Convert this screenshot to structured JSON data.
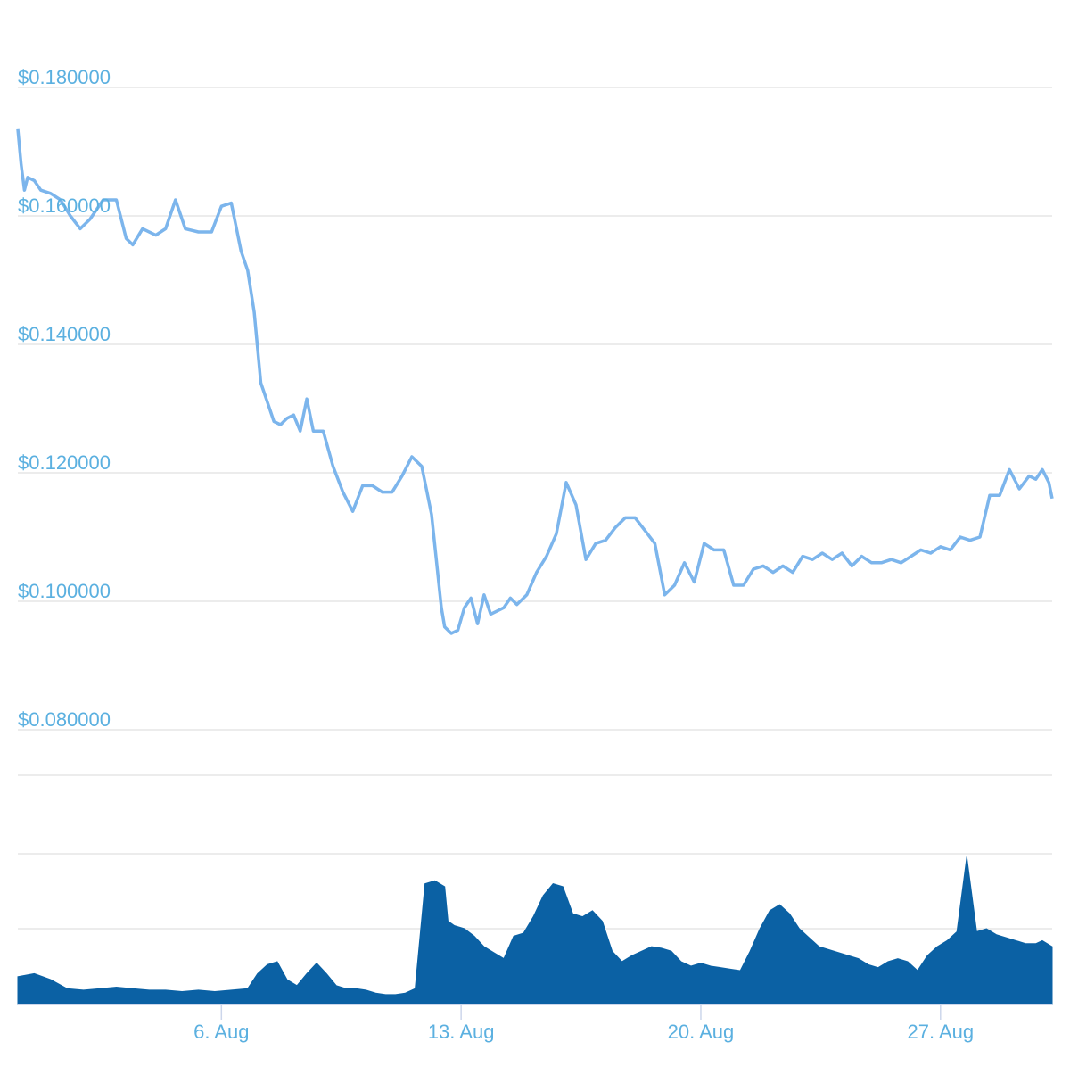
{
  "chart_data": {
    "type": "line",
    "price": {
      "color": "#7cb5ec",
      "ylim": [
        0.07,
        0.19
      ],
      "y_ticks": [
        0.18,
        0.16,
        0.14,
        0.12,
        0.1,
        0.08
      ],
      "y_tick_labels": [
        "$0.180000",
        "$0.160000",
        "$0.140000",
        "$0.120000",
        "$0.100000",
        "$0.080000"
      ],
      "x": [
        0,
        0.1,
        0.2,
        0.3,
        0.5,
        0.7,
        1.0,
        1.3,
        1.6,
        1.9,
        2.2,
        2.6,
        3.0,
        3.3,
        3.5,
        3.8,
        4.2,
        4.5,
        4.8,
        5.1,
        5.5,
        5.9,
        6.2,
        6.5,
        6.8,
        7.0,
        7.2,
        7.4,
        7.6,
        7.8,
        8.0,
        8.2,
        8.4,
        8.6,
        8.8,
        9.0,
        9.3,
        9.6,
        9.9,
        10.2,
        10.5,
        10.8,
        11.1,
        11.4,
        11.7,
        12.0,
        12.3,
        12.6,
        12.9,
        13.0,
        13.2,
        13.4,
        13.6,
        13.8,
        14.0,
        14.2,
        14.4,
        14.6,
        14.8,
        15.0,
        15.2,
        15.5,
        15.8,
        16.1,
        16.4,
        16.7,
        17.0,
        17.3,
        17.6,
        17.9,
        18.2,
        18.5,
        18.8,
        19.1,
        19.4,
        19.7,
        20.0,
        20.3,
        20.6,
        20.9,
        21.2,
        21.5,
        21.8,
        22.1,
        22.4,
        22.7,
        23.0,
        23.3,
        23.6,
        23.9,
        24.2,
        24.5,
        24.8,
        25.1,
        25.4,
        25.7,
        26.0,
        26.3,
        26.6,
        26.9,
        27.2,
        27.5,
        27.8,
        28.1,
        28.4,
        28.7,
        29.0,
        29.3,
        29.6,
        29.9,
        30.2,
        30.5,
        30.8,
        31.0,
        31.2,
        31.4,
        31.5
      ],
      "values": [
        0.1735,
        0.168,
        0.164,
        0.166,
        0.1655,
        0.164,
        0.1635,
        0.1625,
        0.16,
        0.158,
        0.1595,
        0.1625,
        0.1625,
        0.1565,
        0.1555,
        0.158,
        0.157,
        0.158,
        0.1625,
        0.158,
        0.1575,
        0.1575,
        0.1615,
        0.162,
        0.1545,
        0.1515,
        0.145,
        0.134,
        0.131,
        0.128,
        0.1275,
        0.1285,
        0.129,
        0.1265,
        0.1315,
        0.1265,
        0.1265,
        0.121,
        0.117,
        0.114,
        0.118,
        0.118,
        0.117,
        0.117,
        0.1195,
        0.1225,
        0.121,
        0.1135,
        0.099,
        0.096,
        0.095,
        0.0955,
        0.099,
        0.1005,
        0.0965,
        0.101,
        0.098,
        0.0985,
        0.099,
        0.1005,
        0.0995,
        0.101,
        0.1045,
        0.107,
        0.1105,
        0.1185,
        0.115,
        0.1065,
        0.109,
        0.1095,
        0.1115,
        0.113,
        0.113,
        0.111,
        0.109,
        0.101,
        0.1025,
        0.106,
        0.103,
        0.109,
        0.108,
        0.108,
        0.1025,
        0.1025,
        0.105,
        0.1055,
        0.1045,
        0.1055,
        0.1045,
        0.107,
        0.1065,
        0.1075,
        0.1065,
        0.1075,
        0.1055,
        0.107,
        0.106,
        0.106,
        0.1065,
        0.106,
        0.107,
        0.108,
        0.1075,
        0.1085,
        0.108,
        0.11,
        0.1095,
        0.11,
        0.1165,
        0.1165,
        0.1205,
        0.1175,
        0.1195,
        0.119,
        0.1205,
        0.1185,
        0.116
      ]
    },
    "volume": {
      "color": "#0b61a4",
      "x": [
        0,
        0.5,
        1.0,
        1.5,
        2.0,
        2.5,
        3.0,
        3.5,
        4.0,
        4.5,
        5.0,
        5.5,
        6.0,
        6.5,
        7.0,
        7.3,
        7.6,
        7.9,
        8.2,
        8.5,
        8.8,
        9.1,
        9.4,
        9.7,
        10.0,
        10.3,
        10.6,
        10.9,
        11.2,
        11.5,
        11.8,
        12.1,
        12.4,
        12.7,
        13.0,
        13.1,
        13.3,
        13.6,
        13.9,
        14.2,
        14.5,
        14.8,
        15.1,
        15.4,
        15.7,
        16.0,
        16.3,
        16.6,
        16.9,
        17.2,
        17.5,
        17.8,
        18.1,
        18.4,
        18.7,
        19.0,
        19.3,
        19.6,
        19.9,
        20.2,
        20.5,
        20.8,
        21.1,
        21.4,
        21.7,
        22.0,
        22.3,
        22.6,
        22.9,
        23.2,
        23.5,
        23.8,
        24.1,
        24.4,
        24.7,
        25.0,
        25.3,
        25.6,
        25.9,
        26.2,
        26.5,
        26.8,
        27.1,
        27.4,
        27.7,
        28.0,
        28.3,
        28.6,
        28.9,
        29.2,
        29.5,
        29.8,
        30.1,
        30.4,
        30.7,
        31.0,
        31.2,
        31.5
      ],
      "values": [
        0.18,
        0.2,
        0.16,
        0.1,
        0.09,
        0.1,
        0.11,
        0.1,
        0.09,
        0.09,
        0.08,
        0.09,
        0.08,
        0.09,
        0.1,
        0.2,
        0.26,
        0.28,
        0.16,
        0.12,
        0.2,
        0.27,
        0.2,
        0.12,
        0.1,
        0.1,
        0.09,
        0.07,
        0.06,
        0.06,
        0.07,
        0.1,
        0.8,
        0.82,
        0.78,
        0.55,
        0.52,
        0.5,
        0.45,
        0.38,
        0.34,
        0.3,
        0.45,
        0.47,
        0.58,
        0.72,
        0.8,
        0.78,
        0.6,
        0.58,
        0.62,
        0.55,
        0.35,
        0.28,
        0.32,
        0.35,
        0.38,
        0.37,
        0.35,
        0.28,
        0.25,
        0.27,
        0.25,
        0.24,
        0.23,
        0.22,
        0.35,
        0.5,
        0.62,
        0.66,
        0.6,
        0.5,
        0.44,
        0.38,
        0.36,
        0.34,
        0.32,
        0.3,
        0.26,
        0.24,
        0.28,
        0.3,
        0.28,
        0.22,
        0.32,
        0.38,
        0.42,
        0.48,
        0.98,
        0.48,
        0.5,
        0.46,
        0.44,
        0.42,
        0.4,
        0.4,
        0.42,
        0.38
      ]
    },
    "x_ticks": [
      8.4,
      18.4,
      28.4
    ],
    "x_ticks_pos": [
      5,
      12,
      19,
      26
    ],
    "x_tick_labels": [
      "6. Aug",
      "13. Aug",
      "20. Aug",
      "27. Aug"
    ],
    "xlim": [
      0,
      31.5
    ],
    "grid": true,
    "label_color": "#5bb0e0"
  }
}
